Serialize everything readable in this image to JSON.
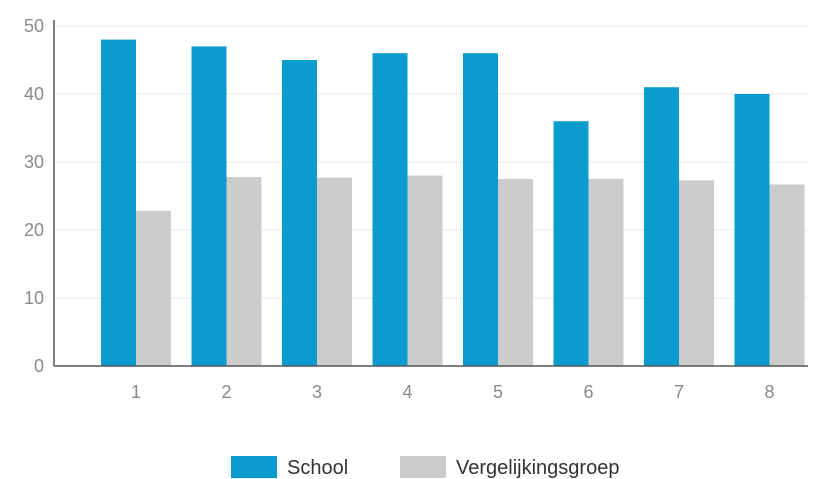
{
  "chart_data": {
    "type": "bar",
    "categories": [
      "1",
      "2",
      "3",
      "4",
      "5",
      "6",
      "7",
      "8"
    ],
    "series": [
      {
        "name": "School",
        "color": "#0a9cce",
        "values": [
          48,
          47,
          45,
          46,
          46,
          36,
          41,
          40
        ]
      },
      {
        "name": "Vergelijkingsgroep",
        "color": "#cccccc",
        "values": [
          22.8,
          27.8,
          27.7,
          28.0,
          27.5,
          27.5,
          27.3,
          26.7
        ]
      }
    ],
    "yticks": [
      "0",
      "10",
      "20",
      "30",
      "40",
      "50"
    ],
    "ylim": [
      0,
      50
    ],
    "grid": true,
    "legend_position": "bottom-center"
  }
}
